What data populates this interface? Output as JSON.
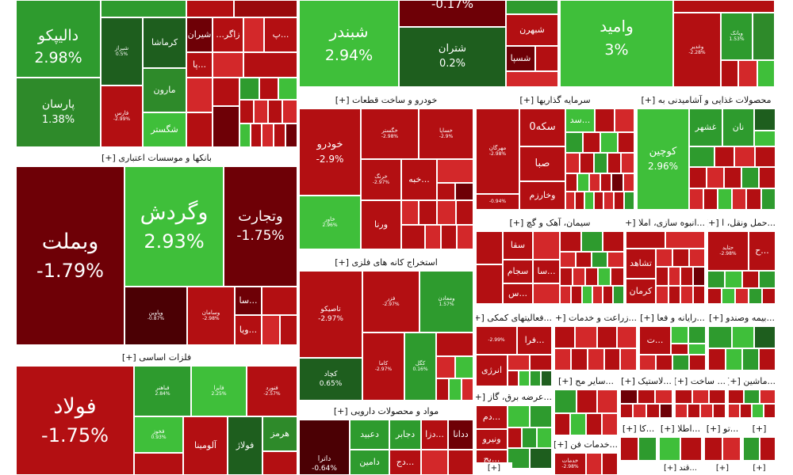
{
  "colors": {
    "dark_red": "#6e0006",
    "red": "#b30f12",
    "mid_red": "#d3282a",
    "green": "#2e9b2e",
    "bright_green": "#3fbf3a",
    "dark_green": "#1e5e1e",
    "white": "#ffffff"
  },
  "tiles": {
    "dapico": {
      "name": "دالیپکو",
      "pct": "2.98%"
    },
    "parsan": {
      "name": "پارسان",
      "pct": "1.38%"
    },
    "shiraz": {
      "name": "شیراز",
      "pct": "0.5%"
    },
    "kermasha": {
      "name": "کرماشا"
    },
    "marun": {
      "name": "مارون"
    },
    "fars": {
      "name": "فارس",
      "pct": "-2.99%"
    },
    "shegostar": {
      "name": "شگستر"
    },
    "shiran": {
      "name": "شیران"
    },
    "zagros": {
      "name": "زاگر..."
    },
    "pa_small": {
      "name": "...پ"
    },
    "pa2": {
      "name": "...پا"
    },
    "shabandar": {
      "name": "شبندر",
      "pct": "2.94%"
    },
    "top_mid": {
      "pct": "-0.17%"
    },
    "shebahran": {
      "name": "شبهرن"
    },
    "shesepa": {
      "name": "شسپا"
    },
    "sheteran": {
      "name": "شتران",
      "pct": "0.2%"
    },
    "vomid": {
      "name": "وامید",
      "pct": "3%"
    },
    "vaghadir": {
      "name": "وغدیر",
      "pct": "-2.28%"
    },
    "vabank": {
      "name": "وبانک",
      "pct": "1.53%"
    },
    "vabmellat": {
      "name": "وبملت",
      "pct": "-1.79%"
    },
    "vagardesh": {
      "name": "وگردش",
      "pct": "2.93%"
    },
    "vatejarat": {
      "name": "وتجارت",
      "pct": "-1.75%"
    },
    "vapoya": {
      "name": "وپاوین",
      "pct": "-0.87%"
    },
    "vasamand": {
      "name": "وسامان",
      "pct": "-2.98%"
    },
    "vasa": {
      "name": "...سا"
    },
    "vaya": {
      "name": "...ویا"
    },
    "foolad": {
      "name": "فولاد",
      "pct": "-1.75%"
    },
    "faboas": {
      "name": "فباهنر",
      "pct": "2.84%"
    },
    "faloira": {
      "name": "فایرا",
      "pct": "2.25%"
    },
    "fnavad": {
      "name": "فنورد",
      "pct": "-2.57%"
    },
    "fkhoz": {
      "name": "فخوز",
      "pct": "0.93%"
    },
    "aloumina": {
      "name": "آلومینا"
    },
    "fouladi": {
      "name": "فولاژ"
    },
    "hormoz": {
      "name": "هرمز"
    },
    "khodro": {
      "name": "خودرو",
      "pct": "-2.9%"
    },
    "khgostar": {
      "name": "خگستر",
      "pct": "-2.98%"
    },
    "khsaipa": {
      "name": "خساپا",
      "pct": "-2.9%"
    },
    "kharkh": {
      "name": "خرنگ",
      "pct": "-2.97%"
    },
    "khabe": {
      "name": "...خبه"
    },
    "khavar": {
      "name": "خاور",
      "pct": "2.96%"
    },
    "varena": {
      "name": "ورنا"
    },
    "mehrgan": {
      "name": "مهرگان",
      "pct": "-2.98%"
    },
    "seke": {
      "name": "سکه0"
    },
    "sad": {
      "name": "...سد"
    },
    "saba": {
      "name": "صبا"
    },
    "vakharazm": {
      "name": "وخارزم"
    },
    "vakhazr": {
      "name": "وخار",
      "pct": "-0.94%"
    },
    "kochin": {
      "name": "کوچین",
      "pct": "2.96%"
    },
    "ghshahr": {
      "name": "غشهر"
    },
    "nan": {
      "name": "نان"
    },
    "tapiko": {
      "name": "تاصیکو",
      "pct": "-2.97%"
    },
    "fzar": {
      "name": "فزر",
      "pct": "-2.97%"
    },
    "vamadan": {
      "name": "ومعادن",
      "pct": "1.57%"
    },
    "kachad": {
      "name": "کچاد",
      "pct": "0.65%"
    },
    "kama": {
      "name": "کاما",
      "pct": "-2.97%"
    },
    "kagol": {
      "name": "کگل",
      "pct": "0.16%"
    },
    "sagha": {
      "name": "سقا"
    },
    "sajam": {
      "name": "سجام"
    },
    "sa2": {
      "name": "...سا"
    },
    "sas": {
      "name": "...س"
    },
    "teshahed": {
      "name": "تشاهد"
    },
    "kerman": {
      "name": "کرمان"
    },
    "hamal_ha": {
      "name": "...ح"
    },
    "hamal_small": {
      "name": "حتاید",
      "pct": "-2.98%"
    },
    "fara": {
      "name": "...فرا"
    },
    "enerzhi": {
      "name": "انرژی"
    },
    "fa_small": {
      "name": "ف",
      "pct": "-2.99%"
    },
    "set": {
      "name": "...ت"
    },
    "dam": {
      "name": "...دم"
    },
    "vanirou": {
      "name": "ونیرو"
    },
    "baj": {
      "name": "...بج"
    },
    "datara": {
      "name": "داترا",
      "pct": "-0.64%"
    },
    "dabid": {
      "name": "دعبید"
    },
    "dajaber": {
      "name": "دجابر"
    },
    "daza": {
      "name": "...دزا"
    },
    "dadana": {
      "name": "ددانا"
    },
    "damin": {
      "name": "دامین"
    },
    "dj": {
      "name": "...دج"
    },
    "ka": {
      "name": "...کا"
    },
    "atla": {
      "name": "...اطلا"
    },
    "to": {
      "name": "...تو"
    },
    "khadamat_pc": {
      "name": "خدمات",
      "pct": "-2.98%"
    }
  },
  "sectors": {
    "banks": "بانکها و موسسات اعتباری [+]",
    "metals": "فلزات اساسی [+]",
    "auto": "خودرو و ساخت قطعات [+]",
    "invest": "سرمایه گذاریها [+]",
    "food": "محصولات غذایی و آشامیدنی به [+]",
    "mining": "استخراج کانه های فلزی [+]",
    "cement": "سیمان، آهک و گچ [+]",
    "construction": "...انبوه سازی، املا [+]",
    "transport": "...حمل ونقل، ا [+]",
    "support": "...فعالیتهای کمکی [+]",
    "agri": "...زراعت و خدمات [+]",
    "computer": "...رایانه و فعا [+]",
    "insurance": "...بیمه وصندو [+]",
    "pharma": "مواد و محصولات دارویی [+]",
    "electricity": "...عرضه برق، گاز [+]",
    "other_mining": "...سایر مح [+]",
    "plastics": "...لاستیک [+]",
    "manufacturing": "... ساخت [+]",
    "machinery": "...ماشین [+]",
    "technical": "...خدمات فن [+]",
    "ka_sec": "...کا [+]",
    "atla_sec": "...اطلا [+]",
    "to_sec": "...تو [+]",
    "s1": "[+]",
    "s2": "[+]",
    "s3": "[+]",
    "s4": "...قند [+]",
    "s5": "[+]",
    "s6": "[+]",
    "s7": "[+]",
    "s8": "[+]"
  }
}
